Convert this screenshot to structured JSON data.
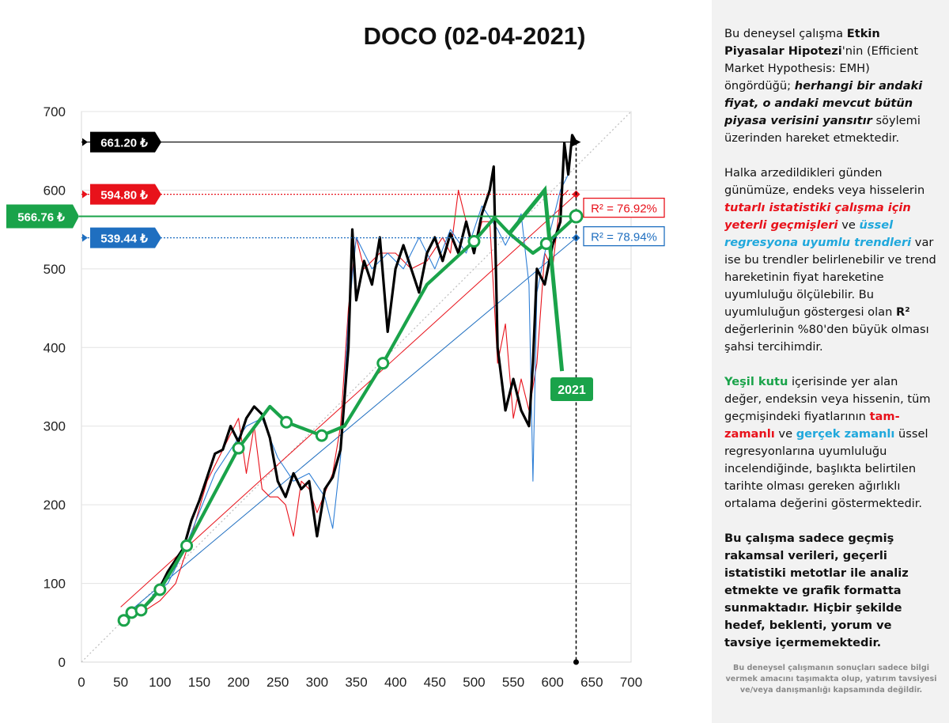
{
  "chart_data": {
    "type": "line",
    "title": "DOCO (02-04-2021)",
    "xlim": [
      0,
      700
    ],
    "ylim": [
      0,
      700
    ],
    "xticks": [
      "0",
      "50",
      "100",
      "150",
      "200",
      "250",
      "300",
      "350",
      "400",
      "450",
      "500",
      "550",
      "600",
      "650",
      "700"
    ],
    "yticks": [
      "0",
      "100",
      "200",
      "300",
      "400",
      "500",
      "600",
      "700"
    ],
    "price_levels": [
      {
        "label": "661.20 ₺",
        "value": 661.2,
        "color": "#000000"
      },
      {
        "label": "594.80 ₺",
        "value": 594.8,
        "color": "#e8121b"
      },
      {
        "label": "566.76 ₺",
        "value": 566.76,
        "color": "#1aa34a"
      },
      {
        "label": "539.44 ₺",
        "value": 539.44,
        "color": "#1f6fc0"
      }
    ],
    "r2_labels": [
      {
        "text": "R² = 76.92%",
        "color": "#e8121b"
      },
      {
        "text": "R² = 78.94%",
        "color": "#1f6fc0"
      }
    ],
    "annotation": "2021",
    "series": [
      {
        "color": "#000000",
        "points": [
          [
            50,
            50
          ],
          [
            60,
            58
          ],
          [
            70,
            62
          ],
          [
            80,
            70
          ],
          [
            90,
            80
          ],
          [
            100,
            95
          ],
          [
            110,
            115
          ],
          [
            120,
            130
          ],
          [
            130,
            145
          ],
          [
            140,
            180
          ],
          [
            150,
            205
          ],
          [
            160,
            235
          ],
          [
            170,
            265
          ],
          [
            180,
            270
          ],
          [
            190,
            300
          ],
          [
            200,
            280
          ],
          [
            210,
            310
          ],
          [
            220,
            325
          ],
          [
            230,
            315
          ],
          [
            240,
            285
          ],
          [
            250,
            230
          ],
          [
            260,
            210
          ],
          [
            270,
            240
          ],
          [
            280,
            220
          ],
          [
            290,
            230
          ],
          [
            300,
            160
          ],
          [
            310,
            220
          ],
          [
            320,
            235
          ],
          [
            330,
            270
          ],
          [
            340,
            400
          ],
          [
            345,
            550
          ],
          [
            350,
            460
          ],
          [
            360,
            510
          ],
          [
            370,
            480
          ],
          [
            380,
            540
          ],
          [
            390,
            420
          ],
          [
            400,
            500
          ],
          [
            410,
            530
          ],
          [
            420,
            500
          ],
          [
            430,
            470
          ],
          [
            440,
            520
          ],
          [
            450,
            540
          ],
          [
            460,
            510
          ],
          [
            470,
            545
          ],
          [
            480,
            520
          ],
          [
            490,
            560
          ],
          [
            500,
            520
          ],
          [
            510,
            570
          ],
          [
            520,
            600
          ],
          [
            525,
            630
          ],
          [
            530,
            400
          ],
          [
            540,
            320
          ],
          [
            550,
            360
          ],
          [
            560,
            320
          ],
          [
            570,
            300
          ],
          [
            575,
            380
          ],
          [
            580,
            500
          ],
          [
            590,
            480
          ],
          [
            600,
            530
          ],
          [
            610,
            560
          ],
          [
            615,
            660
          ],
          [
            620,
            620
          ],
          [
            625,
            670
          ],
          [
            630,
            661
          ]
        ]
      },
      {
        "color": "#e8121b",
        "points": [
          [
            80,
            65
          ],
          [
            100,
            78
          ],
          [
            120,
            100
          ],
          [
            140,
            160
          ],
          [
            160,
            230
          ],
          [
            180,
            270
          ],
          [
            190,
            290
          ],
          [
            200,
            310
          ],
          [
            210,
            240
          ],
          [
            220,
            300
          ],
          [
            230,
            220
          ],
          [
            240,
            210
          ],
          [
            250,
            210
          ],
          [
            260,
            200
          ],
          [
            270,
            160
          ],
          [
            280,
            230
          ],
          [
            290,
            220
          ],
          [
            300,
            190
          ],
          [
            320,
            240
          ],
          [
            330,
            300
          ],
          [
            340,
            450
          ],
          [
            350,
            540
          ],
          [
            360,
            500
          ],
          [
            380,
            520
          ],
          [
            400,
            520
          ],
          [
            420,
            500
          ],
          [
            440,
            510
          ],
          [
            460,
            540
          ],
          [
            470,
            520
          ],
          [
            480,
            600
          ],
          [
            490,
            560
          ],
          [
            500,
            520
          ],
          [
            510,
            560
          ],
          [
            520,
            560
          ],
          [
            530,
            380
          ],
          [
            540,
            430
          ],
          [
            550,
            310
          ],
          [
            560,
            360
          ],
          [
            570,
            320
          ],
          [
            580,
            380
          ],
          [
            590,
            520
          ],
          [
            600,
            500
          ],
          [
            610,
            590
          ],
          [
            620,
            600
          ]
        ]
      },
      {
        "color": "#2f7fd6",
        "points": [
          [
            90,
            85
          ],
          [
            110,
            100
          ],
          [
            130,
            140
          ],
          [
            150,
            190
          ],
          [
            170,
            240
          ],
          [
            190,
            270
          ],
          [
            210,
            300
          ],
          [
            230,
            310
          ],
          [
            250,
            260
          ],
          [
            270,
            230
          ],
          [
            290,
            240
          ],
          [
            310,
            210
          ],
          [
            320,
            170
          ],
          [
            330,
            260
          ],
          [
            340,
            440
          ],
          [
            350,
            540
          ],
          [
            370,
            500
          ],
          [
            390,
            520
          ],
          [
            410,
            500
          ],
          [
            430,
            540
          ],
          [
            450,
            500
          ],
          [
            470,
            550
          ],
          [
            490,
            520
          ],
          [
            510,
            580
          ],
          [
            530,
            550
          ],
          [
            540,
            530
          ],
          [
            560,
            570
          ],
          [
            570,
            480
          ],
          [
            575,
            230
          ],
          [
            580,
            470
          ],
          [
            590,
            520
          ],
          [
            600,
            560
          ],
          [
            610,
            600
          ],
          [
            620,
            620
          ]
        ]
      },
      {
        "color": "#1aa34a",
        "points": [
          [
            54,
            53
          ],
          [
            64,
            63
          ],
          [
            76,
            66
          ],
          [
            100,
            92
          ],
          [
            134,
            148
          ],
          [
            200,
            272
          ],
          [
            240,
            325
          ],
          [
            261,
            305
          ],
          [
            306,
            288
          ],
          [
            335,
            300
          ],
          [
            384,
            380
          ],
          [
            440,
            480
          ],
          [
            500,
            535
          ],
          [
            526,
            565
          ],
          [
            545,
            545
          ],
          [
            575,
            520
          ],
          [
            592,
            532
          ],
          [
            630,
            566.76
          ]
        ]
      }
    ],
    "markers": [
      [
        54,
        53
      ],
      [
        64,
        63
      ],
      [
        76,
        66
      ],
      [
        100,
        92
      ],
      [
        134,
        148
      ],
      [
        200,
        272
      ],
      [
        261,
        305
      ],
      [
        306,
        288
      ],
      [
        384,
        380
      ],
      [
        500,
        535
      ],
      [
        592,
        532
      ],
      [
        630,
        566.76
      ]
    ],
    "trend_lines": [
      {
        "color": "#e8121b",
        "from": [
          50,
          70
        ],
        "to": [
          630,
          594.8
        ]
      },
      {
        "color": "#1f6fc0",
        "from": [
          50,
          55
        ],
        "to": [
          630,
          539.44
        ]
      }
    ]
  },
  "panel": {
    "p1": [
      "Bu deneysel çalışma ",
      "Etkin Piyasalar Hipotezi",
      "'nin (Efficient Market Hypothesis: EMH) öngördüğü; ",
      "herhangi bir andaki fiyat, o andaki mevcut bütün piyasa verisini yansıtır",
      "  söylemi üzerinden hareket etmektedir."
    ],
    "p2": [
      "Halka arzedildikleri günden günümüze, endeks veya hisselerin ",
      "tutarlı istatistiki çalışma için yeterli geçmişleri",
      " ve ",
      "üssel regresyona uyumlu trendleri",
      " var ise bu trendler belirlenebilir  ve trend hareketinin fiyat hareketine uyumluluğu ölçülebilir.  Bu uyumluluğun göstergesi olan ",
      "R²",
      " değerlerinin %80'den büyük olması şahsi tercihimdir."
    ],
    "p3": [
      "Yeşil kutu",
      " içerisinde yer alan değer, endeksin veya hissenin, tüm geçmişindeki fiyatlarının ",
      "tam-zamanlı",
      " ve ",
      "gerçek zamanlı",
      " üssel regresyonlarına uyumluluğu incelendiğinde, başlıkta belirtilen tarihte olması gereken ağırlıklı ortalama değerini göstermektedir."
    ],
    "p4": "Bu çalışma sadece geçmiş rakamsal verileri, geçerli istatistiki metotlar ile  analiz etmekte ve grafik formatta sunmaktadır. Hiçbir şekilde hedef, beklenti, yorum ve tavsiye içermemektedir.",
    "disclaimer": "Bu deneysel çalışmanın sonuçları sadece bilgi vermek amacını taşımakta olup, yatırım tavsiyesi ve/veya danışmanlığı kapsamında değildir."
  }
}
